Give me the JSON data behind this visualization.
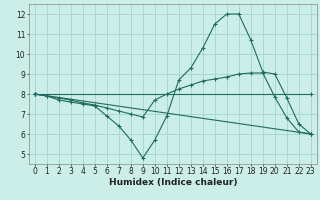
{
  "xlabel": "Humidex (Indice chaleur)",
  "bg_color": "#cceee8",
  "grid_color": "#a8d8d0",
  "line_color": "#1e6b60",
  "spine_color": "#888888",
  "tick_color": "#222222",
  "xlim": [
    -0.5,
    23.5
  ],
  "ylim": [
    4.5,
    12.5
  ],
  "xticks": [
    0,
    1,
    2,
    3,
    4,
    5,
    6,
    7,
    8,
    9,
    10,
    11,
    12,
    13,
    14,
    15,
    16,
    17,
    18,
    19,
    20,
    21,
    22,
    23
  ],
  "yticks": [
    5,
    6,
    7,
    8,
    9,
    10,
    11,
    12
  ],
  "line1_x": [
    0,
    1,
    2,
    3,
    4,
    5,
    6,
    7,
    8,
    9,
    10,
    11,
    12,
    13,
    14,
    15,
    16,
    17,
    18,
    19,
    20,
    21,
    22,
    23
  ],
  "line1_y": [
    8.0,
    7.9,
    7.7,
    7.6,
    7.5,
    7.4,
    6.9,
    6.4,
    5.7,
    4.8,
    5.7,
    6.9,
    8.7,
    9.3,
    10.3,
    11.5,
    12.0,
    12.0,
    10.7,
    9.1,
    9.0,
    7.8,
    6.5,
    6.0
  ],
  "line2_x": [
    0,
    1,
    2,
    3,
    4,
    5,
    6,
    7,
    8,
    9,
    10,
    11,
    12,
    13,
    14,
    15,
    16,
    17,
    18,
    19,
    20,
    21,
    22,
    23
  ],
  "line2_y": [
    8.0,
    7.9,
    7.8,
    7.7,
    7.55,
    7.45,
    7.3,
    7.15,
    7.0,
    6.85,
    7.7,
    8.0,
    8.25,
    8.45,
    8.65,
    8.75,
    8.85,
    9.0,
    9.05,
    9.05,
    7.85,
    6.8,
    6.1,
    6.0
  ],
  "line3_x": [
    0,
    23
  ],
  "line3_y": [
    8.0,
    8.0
  ],
  "line4_x": [
    0,
    23
  ],
  "line4_y": [
    8.0,
    6.0
  ]
}
